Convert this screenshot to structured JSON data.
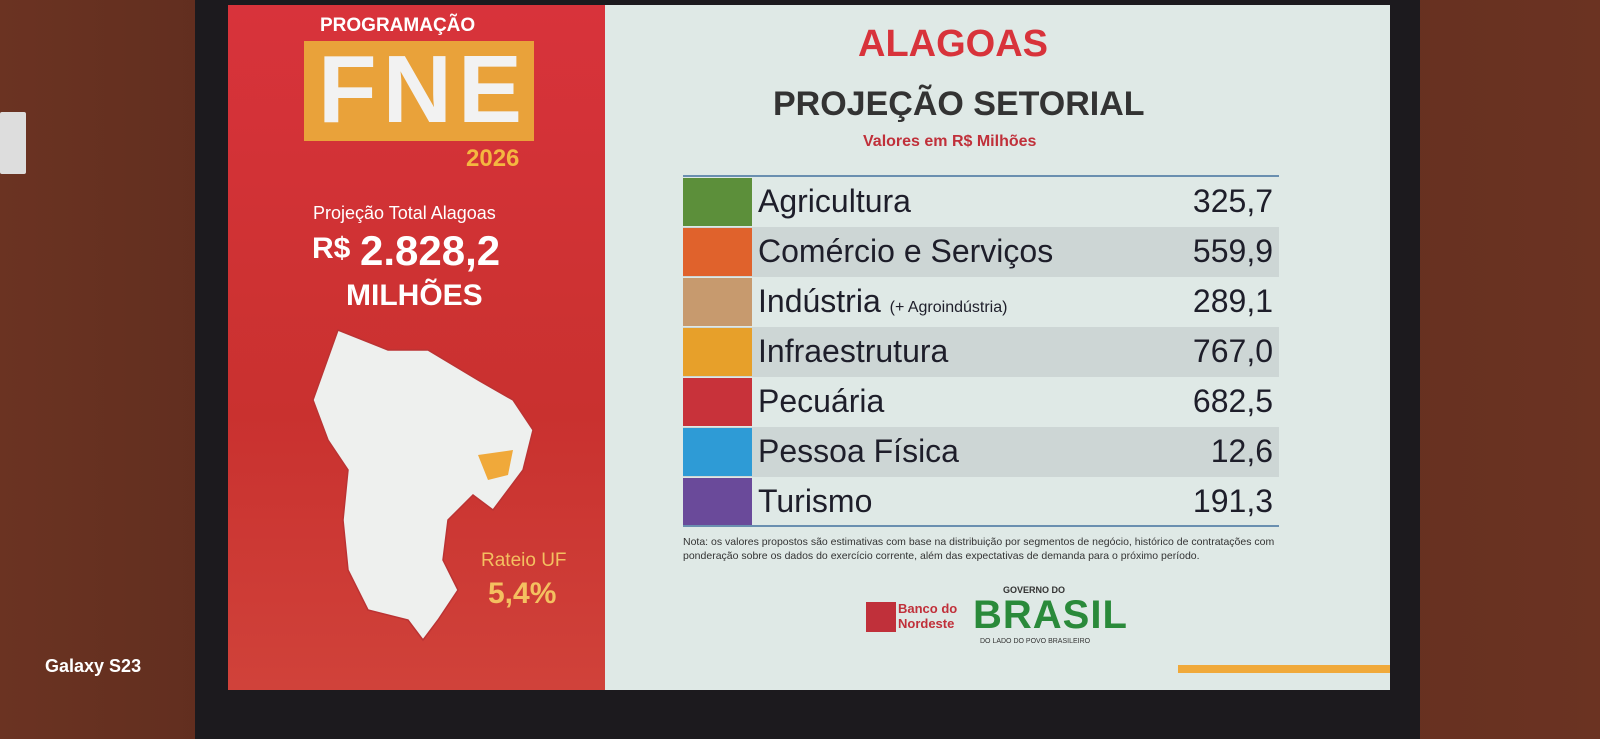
{
  "left_panel": {
    "program_label": "PROGRAMAÇÃO",
    "program_logo": "FNE",
    "year": "2026",
    "total_label": "Projeção Total Alagoas",
    "currency": "R$",
    "total_value": "2.828,2",
    "total_unit": "MILHÕES",
    "share_label": "Rateio UF",
    "share_value": "5,4%"
  },
  "header": {
    "title": "ALAGOAS",
    "subtitle": "PROJEÇÃO SETORIAL",
    "units": "Valores em R$ Milhões"
  },
  "table": {
    "rows": [
      {
        "label": "Agricultura",
        "value": "325,7",
        "color": "#5c8f3a"
      },
      {
        "label": "Comércio e Serviços",
        "value": "559,9",
        "color": "#e0622c"
      },
      {
        "label": "Indústria",
        "suffix": "(+ Agroindústria)",
        "value": "289,1",
        "color": "#c79a6e"
      },
      {
        "label": "Infraestrutura",
        "value": "767,0",
        "color": "#e7a02a"
      },
      {
        "label": "Pecuária",
        "value": "682,5",
        "color": "#c8323a"
      },
      {
        "label": "Pessoa Física",
        "value": "12,6",
        "color": "#2e9bd6"
      },
      {
        "label": "Turismo",
        "value": "191,3",
        "color": "#6a4a9a"
      }
    ]
  },
  "note": "Nota: os valores propostos são estimativas com base na distribuição por segmentos de negócio, histórico de contratações com ponderação sobre os dados do exercício corrente, além das expectativas de demanda para o próximo período.",
  "footer": {
    "bank": "Banco do Nordeste",
    "gov_top": "GOVERNO DO",
    "gov_name": "BRASIL",
    "gov_tagline": "DO LADO DO POVO BRASILEIRO"
  },
  "watermark": "Galaxy S23"
}
